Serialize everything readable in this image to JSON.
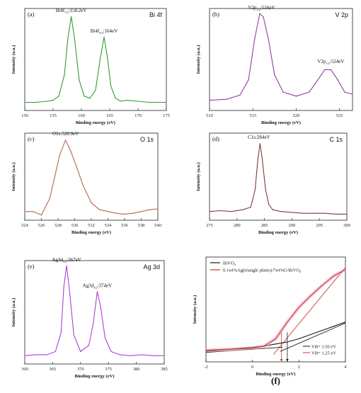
{
  "figure_label": "(f)",
  "chart_data": [
    {
      "id": "a",
      "type": "line",
      "panel_label": "(a)",
      "title": "Bi 4f",
      "xlabel": "Binding energy (eV)",
      "ylabel": "Intensity (a.u.)",
      "xlim": [
        150,
        175
      ],
      "ylim": [
        0,
        100
      ],
      "xticks": [
        "150",
        "155",
        "160",
        "165",
        "170",
        "175"
      ],
      "color": "#2e9e2e",
      "series": [
        {
          "x": [
            150,
            152,
            154,
            155,
            156,
            157,
            157.6,
            158.2,
            158.8,
            159.6,
            160.5,
            161.5,
            162.5,
            163.3,
            164,
            164.6,
            165.2,
            166,
            167,
            168,
            170,
            172,
            175
          ],
          "y": [
            8,
            8,
            9,
            10,
            14,
            35,
            70,
            92,
            70,
            30,
            14,
            12,
            20,
            50,
            72,
            52,
            24,
            12,
            9,
            10,
            9,
            8,
            8
          ]
        }
      ],
      "annotations": [
        {
          "text": "Bi4f",
          "sub": "7/2",
          "rest": ":158.2eV",
          "x": 158.2,
          "y": 95
        },
        {
          "text": "Bi4f",
          "sub": "5/2",
          "rest": ":164eV",
          "x": 164,
          "y": 75
        }
      ]
    },
    {
      "id": "b",
      "type": "line",
      "panel_label": "(b)",
      "title": "V 2p",
      "xlabel": "Binding energy (eV)",
      "ylabel": "Intensity (a.u.)",
      "xlim": [
        510,
        526.5
      ],
      "ylim": [
        0,
        100
      ],
      "xticks": [
        "510",
        "515",
        "520",
        "525"
      ],
      "color": "#8e3f9e",
      "series": [
        {
          "x": [
            510,
            512,
            513.5,
            514.5,
            515.2,
            515.8,
            516.2,
            516.8,
            517.5,
            518.5,
            520,
            521.5,
            522.5,
            523.3,
            524,
            524.8,
            525.6,
            526.5
          ],
          "y": [
            10,
            11,
            15,
            30,
            70,
            95,
            92,
            70,
            35,
            18,
            14,
            18,
            30,
            40,
            40,
            30,
            18,
            16
          ]
        }
      ],
      "annotations": [
        {
          "text": "V2p",
          "sub": "3/2",
          "rest": ":516eV",
          "x": 516,
          "y": 98
        },
        {
          "text": "V2p",
          "sub": "1/2",
          "rest": ":524eV",
          "x": 524,
          "y": 45
        }
      ]
    },
    {
      "id": "c",
      "type": "line",
      "panel_label": "(c)",
      "title": "O 1s",
      "xlabel": "Binding energy (eV)",
      "ylabel": "Intensity (a.u.)",
      "xlim": [
        524,
        540
      ],
      "ylim": [
        0,
        100
      ],
      "xticks": [
        "524",
        "526",
        "528",
        "530",
        "532",
        "534",
        "536",
        "538",
        "540"
      ],
      "color": "#b46a52",
      "series": [
        {
          "x": [
            524,
            525,
            526,
            527,
            527.6,
            528.2,
            528.9,
            529.5,
            530.2,
            531,
            532,
            533,
            534,
            535,
            536,
            537,
            538,
            539,
            540
          ],
          "y": [
            10,
            10,
            6,
            25,
            50,
            75,
            92,
            80,
            62,
            40,
            20,
            12,
            10,
            8,
            7,
            8,
            10,
            12,
            13
          ]
        }
      ],
      "annotations": [
        {
          "text": "O1s",
          "sub": "",
          "rest": ":528.9eV",
          "x": 528.9,
          "y": 96
        }
      ]
    },
    {
      "id": "d",
      "type": "line",
      "panel_label": "(d)",
      "title": "C 1s",
      "xlabel": "Binding energy (eV)",
      "ylabel": "Intensity (a.u.)",
      "xlim": [
        275,
        300
      ],
      "ylim": [
        0,
        100
      ],
      "xticks": [
        "275",
        "280",
        "285",
        "290",
        "295",
        "300"
      ],
      "color": "#7b3b3b",
      "series": [
        {
          "x": [
            275,
            277,
            279,
            281,
            282.5,
            283.3,
            283.8,
            284.2,
            284.6,
            285.2,
            285.8,
            286.5,
            288,
            290,
            292,
            294,
            296,
            298,
            300
          ],
          "y": [
            10,
            11,
            10,
            12,
            15,
            35,
            70,
            88,
            70,
            35,
            18,
            12,
            10,
            9,
            8,
            8,
            8,
            7,
            7
          ]
        }
      ],
      "annotations": [
        {
          "text": "C1s",
          "sub": "",
          "rest": ":284eV",
          "x": 284,
          "y": 92
        }
      ]
    },
    {
      "id": "e",
      "type": "line",
      "panel_label": "(e)",
      "title": "Ag 3d",
      "xlabel": "Binding energy (eV)",
      "ylabel": "Intensity (a.u.)",
      "xlim": [
        360,
        385
      ],
      "ylim": [
        0,
        100
      ],
      "xticks": [
        "360",
        "365",
        "370",
        "375",
        "380",
        "385"
      ],
      "color": "#b13fd9",
      "series": [
        {
          "x": [
            360,
            362,
            364,
            365.5,
            366.5,
            367,
            367.5,
            368,
            368.8,
            370,
            371.5,
            372.3,
            373,
            373.6,
            374.4,
            375.5,
            377,
            379,
            381,
            383,
            385
          ],
          "y": [
            8,
            9,
            9,
            12,
            30,
            75,
            95,
            72,
            28,
            12,
            18,
            40,
            70,
            55,
            25,
            12,
            9,
            8,
            9,
            8,
            8
          ]
        }
      ],
      "annotations": [
        {
          "text": "Ag3d",
          "sub": "5/2",
          "rest": ":367eV",
          "x": 367.5,
          "y": 98
        },
        {
          "text": "Ag3d",
          "sub": "3/2",
          "rest": ":374eV",
          "x": 373,
          "y": 73
        }
      ]
    },
    {
      "id": "f",
      "type": "line",
      "panel_label": "",
      "title": "",
      "xlabel": "Binding energy (eV)",
      "ylabel": "Intensity (a.u.)",
      "xlim": [
        -2,
        4
      ],
      "ylim": [
        0,
        100
      ],
      "xticks": [
        "-2",
        "0",
        "2",
        "4"
      ],
      "series": [
        {
          "name_html": "BiVO",
          "name_sub": "4",
          "color": "#1a1a1a",
          "x": [
            -2,
            -1,
            0,
            0.5,
            1,
            1.5,
            2,
            2.5,
            3,
            3.5,
            4
          ],
          "y": [
            10,
            12,
            14,
            15,
            17,
            19,
            22,
            26,
            30,
            34,
            38
          ]
        },
        {
          "name_html": "0.1wt%Ag(triangle plates)/7wt%G/BiVO",
          "name_sub": "4",
          "color": "#c0392b",
          "x": [
            -2,
            -1,
            0,
            0.5,
            1,
            1.5,
            2,
            2.5,
            3,
            3.5,
            4
          ],
          "y": [
            11,
            12,
            13,
            15,
            22,
            38,
            52,
            63,
            73,
            82,
            88
          ]
        }
      ],
      "tangents": [
        {
          "x1": 0.9,
          "y1": 7,
          "x2": 4,
          "y2": 90,
          "color": "#c0392b"
        },
        {
          "x1": 1.2,
          "y1": 10,
          "x2": 4,
          "y2": 37,
          "color": "#1a1a1a"
        },
        {
          "x1": -2,
          "y1": 9,
          "x2": 1.3,
          "y2": 14,
          "color": "#1a1a1a"
        }
      ],
      "vb_markers": [
        {
          "x": 1.25,
          "color": "#c0392b"
        },
        {
          "x": 1.5,
          "color": "#1a1a1a"
        }
      ],
      "vb_legend": [
        "VB= 1.50 eV",
        "VB= 1.25 eV"
      ]
    }
  ]
}
